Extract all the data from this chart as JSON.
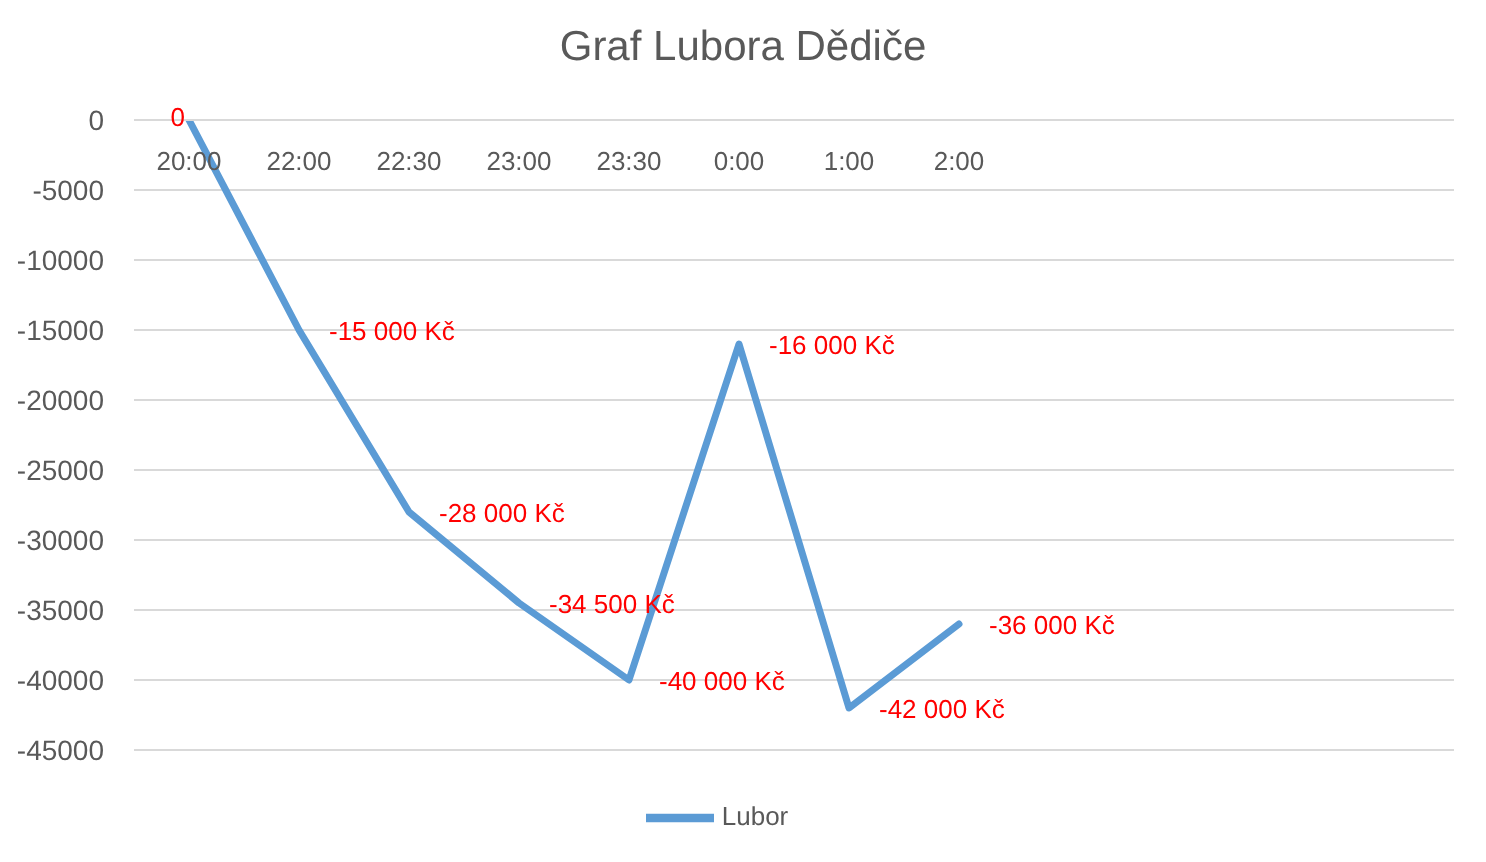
{
  "chart_data": {
    "type": "line",
    "title": "Graf Lubora Dědiče",
    "categories": [
      "20:00",
      "22:00",
      "22:30",
      "23:00",
      "23:30",
      "0:00",
      "1:00",
      "2:00",
      null,
      null,
      null,
      null
    ],
    "series": [
      {
        "name": "Lubor",
        "color": "#5b9bd5",
        "values": [
          0,
          -15000,
          -28000,
          -34500,
          -40000,
          -16000,
          -42000,
          -36000,
          null,
          null,
          null,
          null
        ],
        "value_labels": [
          "0",
          "-15 000 Kč",
          "-28 000 Kč",
          "-34 500 Kč",
          "-40 000 Kč",
          "-16 000 Kč",
          "-42 000 Kč",
          "-36 000 Kč",
          null,
          null,
          null,
          null
        ]
      }
    ],
    "ylim": [
      -45000,
      0
    ],
    "yticks": [
      0,
      -5000,
      -10000,
      -15000,
      -20000,
      -25000,
      -30000,
      -35000,
      -40000,
      -45000
    ],
    "grid": "y",
    "legend": "bottom",
    "marker": "none",
    "line_style": "solid"
  }
}
